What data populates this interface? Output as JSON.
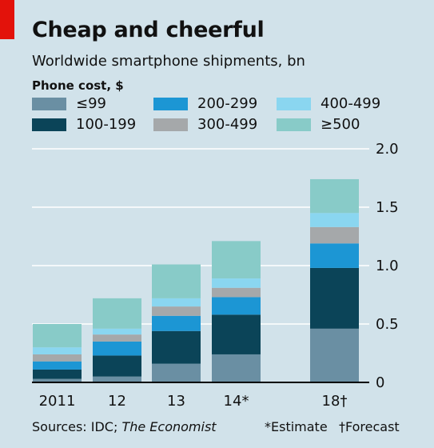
{
  "header": {
    "title": "Cheap and cheerful",
    "subtitle": "Worldwide smartphone shipments, bn"
  },
  "legend": {
    "title": "Phone cost, $",
    "items": [
      {
        "label": "≤99",
        "color": "#6a8fa3"
      },
      {
        "label": "200-299",
        "color": "#1c96d4"
      },
      {
        "label": "400-499",
        "color": "#8ad6f0"
      },
      {
        "label": "100-199",
        "color": "#0b4458"
      },
      {
        "label": "300-499",
        "color": "#a5a8aa"
      },
      {
        "label": "≥500",
        "color": "#88cbc8"
      }
    ]
  },
  "footer": {
    "sources": "Sources: IDC; The Economist",
    "estimate": "*Estimate",
    "forecast": "†Forecast"
  },
  "chart_data": {
    "type": "bar",
    "stacked": true,
    "categories": [
      "2011",
      "12",
      "13",
      "14*",
      "18†"
    ],
    "series": [
      {
        "name": "≤99",
        "color": "#6a8fa3",
        "values": [
          0.03,
          0.05,
          0.16,
          0.24,
          0.46
        ]
      },
      {
        "name": "100-199",
        "color": "#0b4458",
        "values": [
          0.08,
          0.18,
          0.28,
          0.34,
          0.52
        ]
      },
      {
        "name": "200-299",
        "color": "#1c96d4",
        "values": [
          0.07,
          0.12,
          0.13,
          0.15,
          0.21
        ]
      },
      {
        "name": "300-499",
        "color": "#a5a8aa",
        "values": [
          0.06,
          0.06,
          0.08,
          0.08,
          0.14
        ]
      },
      {
        "name": "400-499",
        "color": "#8ad6f0",
        "values": [
          0.06,
          0.05,
          0.07,
          0.08,
          0.12
        ]
      },
      {
        "name": "≥500",
        "color": "#88cbc8",
        "values": [
          0.2,
          0.26,
          0.29,
          0.32,
          0.29
        ]
      }
    ],
    "ylim": [
      0,
      2.0
    ],
    "yticks": [
      0,
      0.5,
      1.0,
      1.5,
      2.0
    ],
    "ytick_labels": [
      "0",
      "0.5",
      "1.0",
      "1.5",
      "2.0"
    ],
    "y_axis_side": "right",
    "grid": true,
    "legend_position": "top-left"
  }
}
